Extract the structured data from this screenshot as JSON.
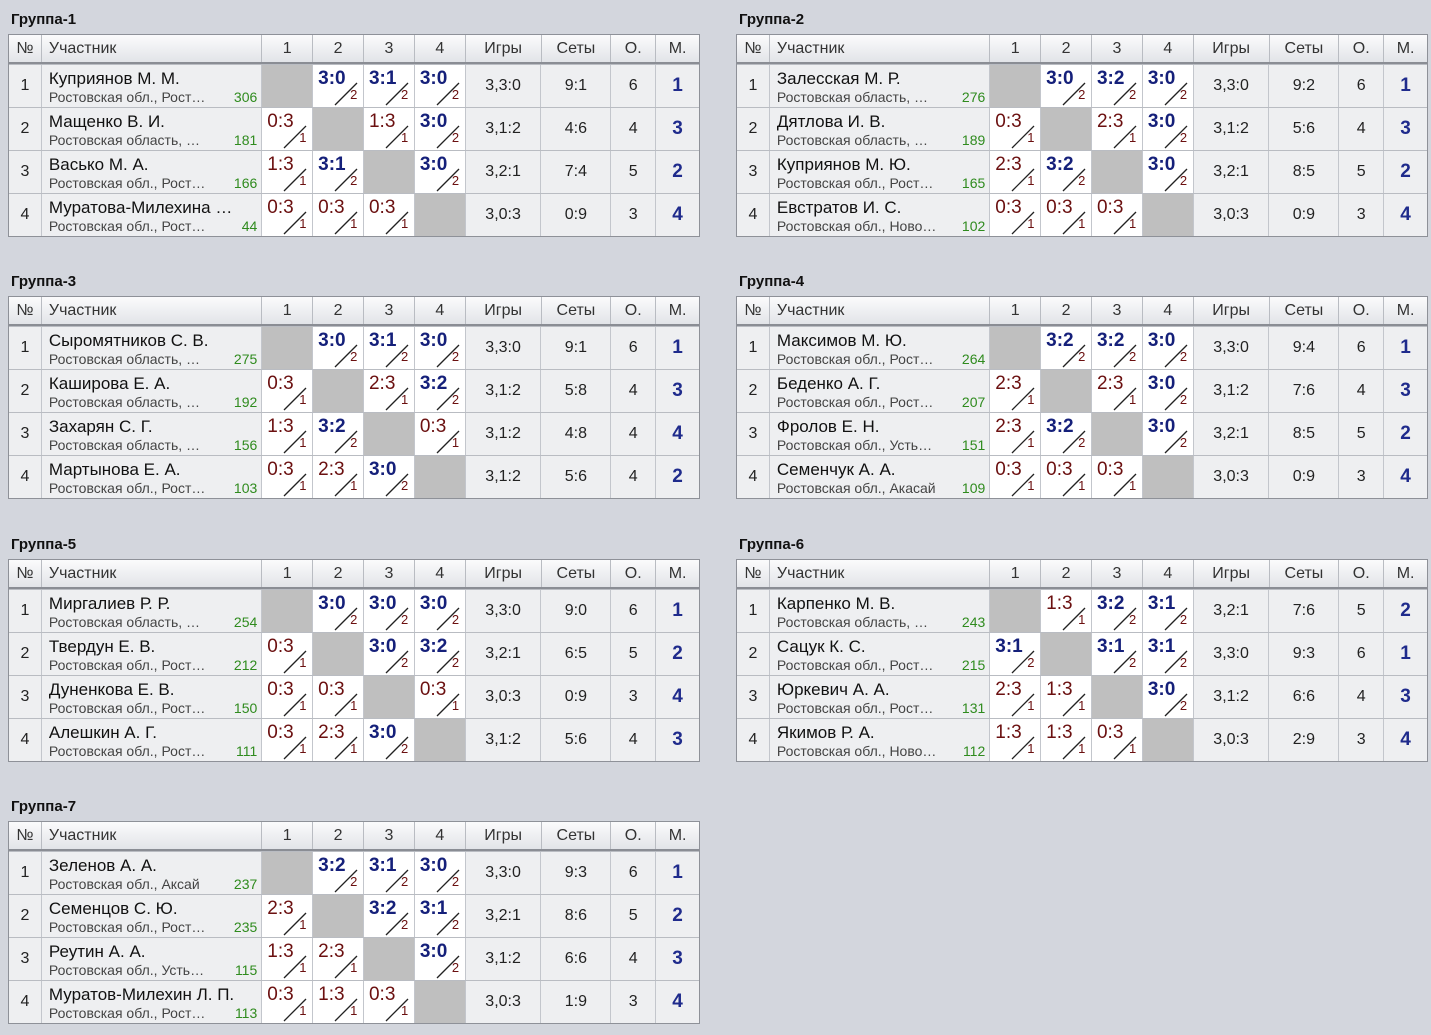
{
  "headers": {
    "num": "№",
    "name": "Участник",
    "c1": "1",
    "c2": "2",
    "c3": "3",
    "c4": "4",
    "games": "Игры",
    "sets": "Сеты",
    "pts": "О.",
    "place": "М."
  },
  "groups": [
    {
      "title": "Группа-1",
      "rows": [
        {
          "num": "1",
          "name": "Куприянов М. М.",
          "region": "Ростовская обл., Рост…",
          "rating": "306",
          "results": [
            null,
            {
              "s": "3:0",
              "g": "2",
              "w": true
            },
            {
              "s": "3:1",
              "g": "2",
              "w": true
            },
            {
              "s": "3:0",
              "g": "2",
              "w": true
            }
          ],
          "games": "3,3:0",
          "sets": "9:1",
          "pts": "6",
          "place": "1"
        },
        {
          "num": "2",
          "name": "Мащенко В. И.",
          "region": "Ростовская область, …",
          "rating": "181",
          "results": [
            {
              "s": "0:3",
              "g": "1",
              "w": false
            },
            null,
            {
              "s": "1:3",
              "g": "1",
              "w": false
            },
            {
              "s": "3:0",
              "g": "2",
              "w": true
            }
          ],
          "games": "3,1:2",
          "sets": "4:6",
          "pts": "4",
          "place": "3"
        },
        {
          "num": "3",
          "name": "Васько М. А.",
          "region": "Ростовская обл., Рост…",
          "rating": "166",
          "results": [
            {
              "s": "1:3",
              "g": "1",
              "w": false
            },
            {
              "s": "3:1",
              "g": "2",
              "w": true
            },
            null,
            {
              "s": "3:0",
              "g": "2",
              "w": true
            }
          ],
          "games": "3,2:1",
          "sets": "7:4",
          "pts": "5",
          "place": "2"
        },
        {
          "num": "4",
          "name": "Муратова-Милехина …",
          "region": "Ростовская обл., Рост…",
          "rating": "44",
          "results": [
            {
              "s": "0:3",
              "g": "1",
              "w": false
            },
            {
              "s": "0:3",
              "g": "1",
              "w": false
            },
            {
              "s": "0:3",
              "g": "1",
              "w": false
            },
            null
          ],
          "games": "3,0:3",
          "sets": "0:9",
          "pts": "3",
          "place": "4"
        }
      ]
    },
    {
      "title": "Группа-2",
      "rows": [
        {
          "num": "1",
          "name": "Залесская М. Р.",
          "region": "Ростовская область, …",
          "rating": "276",
          "results": [
            null,
            {
              "s": "3:0",
              "g": "2",
              "w": true
            },
            {
              "s": "3:2",
              "g": "2",
              "w": true
            },
            {
              "s": "3:0",
              "g": "2",
              "w": true
            }
          ],
          "games": "3,3:0",
          "sets": "9:2",
          "pts": "6",
          "place": "1"
        },
        {
          "num": "2",
          "name": "Дятлова И. В.",
          "region": "Ростовская область, …",
          "rating": "189",
          "results": [
            {
              "s": "0:3",
              "g": "1",
              "w": false
            },
            null,
            {
              "s": "2:3",
              "g": "1",
              "w": false
            },
            {
              "s": "3:0",
              "g": "2",
              "w": true
            }
          ],
          "games": "3,1:2",
          "sets": "5:6",
          "pts": "4",
          "place": "3"
        },
        {
          "num": "3",
          "name": "Куприянов М. Ю.",
          "region": "Ростовская обл., Рост…",
          "rating": "165",
          "results": [
            {
              "s": "2:3",
              "g": "1",
              "w": false
            },
            {
              "s": "3:2",
              "g": "2",
              "w": true
            },
            null,
            {
              "s": "3:0",
              "g": "2",
              "w": true
            }
          ],
          "games": "3,2:1",
          "sets": "8:5",
          "pts": "5",
          "place": "2"
        },
        {
          "num": "4",
          "name": "Евстратов И. С.",
          "region": "Ростовская обл., Ново…",
          "rating": "102",
          "results": [
            {
              "s": "0:3",
              "g": "1",
              "w": false
            },
            {
              "s": "0:3",
              "g": "1",
              "w": false
            },
            {
              "s": "0:3",
              "g": "1",
              "w": false
            },
            null
          ],
          "games": "3,0:3",
          "sets": "0:9",
          "pts": "3",
          "place": "4"
        }
      ]
    },
    {
      "title": "Группа-3",
      "rows": [
        {
          "num": "1",
          "name": "Сыромятников С. В.",
          "region": "Ростовская область, …",
          "rating": "275",
          "results": [
            null,
            {
              "s": "3:0",
              "g": "2",
              "w": true
            },
            {
              "s": "3:1",
              "g": "2",
              "w": true
            },
            {
              "s": "3:0",
              "g": "2",
              "w": true
            }
          ],
          "games": "3,3:0",
          "sets": "9:1",
          "pts": "6",
          "place": "1"
        },
        {
          "num": "2",
          "name": "Каширова Е. А.",
          "region": "Ростовская область, …",
          "rating": "192",
          "results": [
            {
              "s": "0:3",
              "g": "1",
              "w": false
            },
            null,
            {
              "s": "2:3",
              "g": "1",
              "w": false
            },
            {
              "s": "3:2",
              "g": "2",
              "w": true
            }
          ],
          "games": "3,1:2",
          "sets": "5:8",
          "pts": "4",
          "place": "3"
        },
        {
          "num": "3",
          "name": "Захарян С. Г.",
          "region": "Ростовская область, …",
          "rating": "156",
          "results": [
            {
              "s": "1:3",
              "g": "1",
              "w": false
            },
            {
              "s": "3:2",
              "g": "2",
              "w": true
            },
            null,
            {
              "s": "0:3",
              "g": "1",
              "w": false
            }
          ],
          "games": "3,1:2",
          "sets": "4:8",
          "pts": "4",
          "place": "4"
        },
        {
          "num": "4",
          "name": "Мартынова Е. А.",
          "region": "Ростовская обл., Рост…",
          "rating": "103",
          "results": [
            {
              "s": "0:3",
              "g": "1",
              "w": false
            },
            {
              "s": "2:3",
              "g": "1",
              "w": false
            },
            {
              "s": "3:0",
              "g": "2",
              "w": true
            },
            null
          ],
          "games": "3,1:2",
          "sets": "5:6",
          "pts": "4",
          "place": "2"
        }
      ]
    },
    {
      "title": "Группа-4",
      "rows": [
        {
          "num": "1",
          "name": "Максимов М. Ю.",
          "region": "Ростовская обл., Рост…",
          "rating": "264",
          "results": [
            null,
            {
              "s": "3:2",
              "g": "2",
              "w": true
            },
            {
              "s": "3:2",
              "g": "2",
              "w": true
            },
            {
              "s": "3:0",
              "g": "2",
              "w": true
            }
          ],
          "games": "3,3:0",
          "sets": "9:4",
          "pts": "6",
          "place": "1"
        },
        {
          "num": "2",
          "name": "Беденко А. Г.",
          "region": "Ростовская обл., Рост…",
          "rating": "207",
          "results": [
            {
              "s": "2:3",
              "g": "1",
              "w": false
            },
            null,
            {
              "s": "2:3",
              "g": "1",
              "w": false
            },
            {
              "s": "3:0",
              "g": "2",
              "w": true
            }
          ],
          "games": "3,1:2",
          "sets": "7:6",
          "pts": "4",
          "place": "3"
        },
        {
          "num": "3",
          "name": "Фролов Е. Н.",
          "region": "Ростовская обл., Усть…",
          "rating": "151",
          "results": [
            {
              "s": "2:3",
              "g": "1",
              "w": false
            },
            {
              "s": "3:2",
              "g": "2",
              "w": true
            },
            null,
            {
              "s": "3:0",
              "g": "2",
              "w": true
            }
          ],
          "games": "3,2:1",
          "sets": "8:5",
          "pts": "5",
          "place": "2"
        },
        {
          "num": "4",
          "name": "Семенчук А. А.",
          "region": "Ростовская обл., Акасай",
          "rating": "109",
          "results": [
            {
              "s": "0:3",
              "g": "1",
              "w": false
            },
            {
              "s": "0:3",
              "g": "1",
              "w": false
            },
            {
              "s": "0:3",
              "g": "1",
              "w": false
            },
            null
          ],
          "games": "3,0:3",
          "sets": "0:9",
          "pts": "3",
          "place": "4"
        }
      ]
    },
    {
      "title": "Группа-5",
      "rows": [
        {
          "num": "1",
          "name": "Миргалиев Р. Р.",
          "region": "Ростовская область, …",
          "rating": "254",
          "results": [
            null,
            {
              "s": "3:0",
              "g": "2",
              "w": true
            },
            {
              "s": "3:0",
              "g": "2",
              "w": true
            },
            {
              "s": "3:0",
              "g": "2",
              "w": true
            }
          ],
          "games": "3,3:0",
          "sets": "9:0",
          "pts": "6",
          "place": "1"
        },
        {
          "num": "2",
          "name": "Твердун Е. В.",
          "region": "Ростовская обл., Рост…",
          "rating": "212",
          "results": [
            {
              "s": "0:3",
              "g": "1",
              "w": false
            },
            null,
            {
              "s": "3:0",
              "g": "2",
              "w": true
            },
            {
              "s": "3:2",
              "g": "2",
              "w": true
            }
          ],
          "games": "3,2:1",
          "sets": "6:5",
          "pts": "5",
          "place": "2"
        },
        {
          "num": "3",
          "name": "Дуненкова Е. В.",
          "region": "Ростовская обл., Рост…",
          "rating": "150",
          "results": [
            {
              "s": "0:3",
              "g": "1",
              "w": false
            },
            {
              "s": "0:3",
              "g": "1",
              "w": false
            },
            null,
            {
              "s": "0:3",
              "g": "1",
              "w": false
            }
          ],
          "games": "3,0:3",
          "sets": "0:9",
          "pts": "3",
          "place": "4"
        },
        {
          "num": "4",
          "name": "Алешкин А. Г.",
          "region": "Ростовская обл., Рост…",
          "rating": "111",
          "results": [
            {
              "s": "0:3",
              "g": "1",
              "w": false
            },
            {
              "s": "2:3",
              "g": "1",
              "w": false
            },
            {
              "s": "3:0",
              "g": "2",
              "w": true
            },
            null
          ],
          "games": "3,1:2",
          "sets": "5:6",
          "pts": "4",
          "place": "3"
        }
      ]
    },
    {
      "title": "Группа-6",
      "rows": [
        {
          "num": "1",
          "name": "Карпенко М. В.",
          "region": "Ростовская область, …",
          "rating": "243",
          "results": [
            null,
            {
              "s": "1:3",
              "g": "1",
              "w": false
            },
            {
              "s": "3:2",
              "g": "2",
              "w": true
            },
            {
              "s": "3:1",
              "g": "2",
              "w": true
            }
          ],
          "games": "3,2:1",
          "sets": "7:6",
          "pts": "5",
          "place": "2"
        },
        {
          "num": "2",
          "name": "Сацук К. С.",
          "region": "Ростовская обл., Рост…",
          "rating": "215",
          "results": [
            {
              "s": "3:1",
              "g": "2",
              "w": true
            },
            null,
            {
              "s": "3:1",
              "g": "2",
              "w": true
            },
            {
              "s": "3:1",
              "g": "2",
              "w": true
            }
          ],
          "games": "3,3:0",
          "sets": "9:3",
          "pts": "6",
          "place": "1"
        },
        {
          "num": "3",
          "name": "Юркевич А. А.",
          "region": "Ростовская обл., Рост…",
          "rating": "131",
          "results": [
            {
              "s": "2:3",
              "g": "1",
              "w": false
            },
            {
              "s": "1:3",
              "g": "1",
              "w": false
            },
            null,
            {
              "s": "3:0",
              "g": "2",
              "w": true
            }
          ],
          "games": "3,1:2",
          "sets": "6:6",
          "pts": "4",
          "place": "3"
        },
        {
          "num": "4",
          "name": "Якимов Р. А.",
          "region": "Ростовская обл., Ново…",
          "rating": "112",
          "results": [
            {
              "s": "1:3",
              "g": "1",
              "w": false
            },
            {
              "s": "1:3",
              "g": "1",
              "w": false
            },
            {
              "s": "0:3",
              "g": "1",
              "w": false
            },
            null
          ],
          "games": "3,0:3",
          "sets": "2:9",
          "pts": "3",
          "place": "4"
        }
      ]
    },
    {
      "title": "Группа-7",
      "rows": [
        {
          "num": "1",
          "name": "Зеленов А. А.",
          "region": "Ростовская обл., Аксай",
          "rating": "237",
          "results": [
            null,
            {
              "s": "3:2",
              "g": "2",
              "w": true
            },
            {
              "s": "3:1",
              "g": "2",
              "w": true
            },
            {
              "s": "3:0",
              "g": "2",
              "w": true
            }
          ],
          "games": "3,3:0",
          "sets": "9:3",
          "pts": "6",
          "place": "1"
        },
        {
          "num": "2",
          "name": "Семенцов С. Ю.",
          "region": "Ростовская обл., Рост…",
          "rating": "235",
          "results": [
            {
              "s": "2:3",
              "g": "1",
              "w": false
            },
            null,
            {
              "s": "3:2",
              "g": "2",
              "w": true
            },
            {
              "s": "3:1",
              "g": "2",
              "w": true
            }
          ],
          "games": "3,2:1",
          "sets": "8:6",
          "pts": "5",
          "place": "2"
        },
        {
          "num": "3",
          "name": "Реутин А. А.",
          "region": "Ростовская обл., Усть…",
          "rating": "115",
          "results": [
            {
              "s": "1:3",
              "g": "1",
              "w": false
            },
            {
              "s": "2:3",
              "g": "1",
              "w": false
            },
            null,
            {
              "s": "3:0",
              "g": "2",
              "w": true
            }
          ],
          "games": "3,1:2",
          "sets": "6:6",
          "pts": "4",
          "place": "3"
        },
        {
          "num": "4",
          "name": "Муратов-Милехин Л. П.",
          "region": "Ростовская обл., Рост…",
          "rating": "113",
          "results": [
            {
              "s": "0:3",
              "g": "1",
              "w": false
            },
            {
              "s": "1:3",
              "g": "1",
              "w": false
            },
            {
              "s": "0:3",
              "g": "1",
              "w": false
            },
            null
          ],
          "games": "3,0:3",
          "sets": "1:9",
          "pts": "3",
          "place": "4"
        }
      ]
    }
  ]
}
